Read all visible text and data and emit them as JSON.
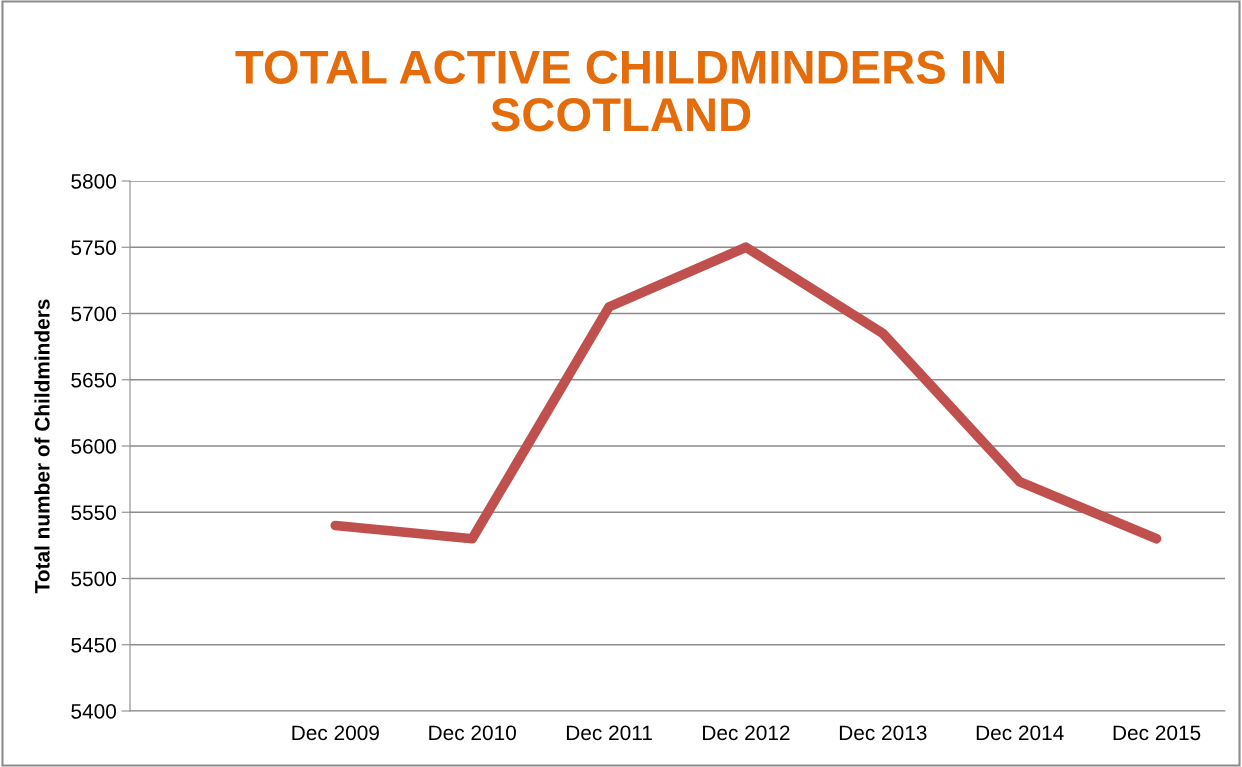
{
  "chart_data": {
    "type": "line",
    "title": "TOTAL ACTIVE CHILDMINDERS IN\nSCOTLAND",
    "ylabel": "Total number of Childminders",
    "categories": [
      null,
      "Dec 2009",
      "Dec 2010",
      "Dec 2011",
      "Dec 2012",
      "Dec 2013",
      "Dec 2014",
      "Dec 2015"
    ],
    "series": [
      {
        "color": "#c0504d",
        "values": [
          null,
          5540,
          5530,
          5705,
          5750,
          5685,
          5573,
          5530
        ]
      }
    ],
    "ylim": [
      5400,
      5800
    ],
    "yticks": [
      5400,
      5450,
      5500,
      5550,
      5600,
      5650,
      5700,
      5750,
      5800
    ],
    "grid": "y",
    "legend": false,
    "marker": "none",
    "line_style": "solid"
  }
}
